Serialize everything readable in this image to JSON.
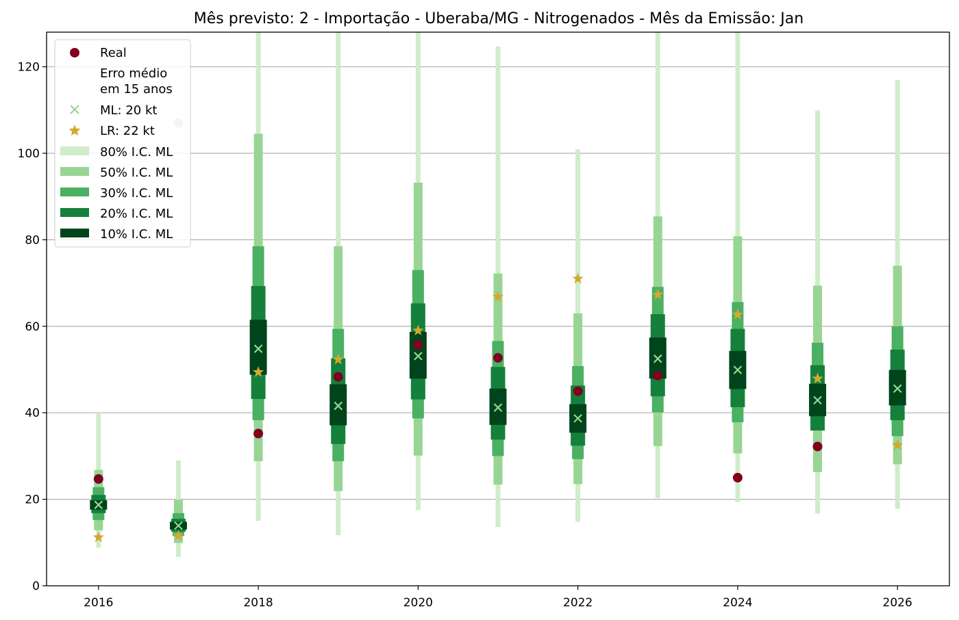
{
  "chart_data": {
    "type": "interval-forecast",
    "title": "Mês previsto: 2 - Importação - Uberaba/MG - Nitrogenados - Mês da Emissão: Jan",
    "xlabel": "",
    "ylabel": "",
    "xlim": [
      2015.35,
      2026.65
    ],
    "ylim": [
      0,
      128
    ],
    "x_ticks": [
      2016,
      2018,
      2020,
      2022,
      2024,
      2026
    ],
    "y_ticks": [
      0,
      20,
      40,
      60,
      80,
      100,
      120
    ],
    "grid": "horizontal",
    "legend_position": "top-left",
    "colors": {
      "ci80": "#d0ecca",
      "ci50": "#98d594",
      "ci30": "#4bb062",
      "ci20": "#15803b",
      "ci10": "#00441b",
      "real": "#800020",
      "real_faded": "#d8adb9",
      "ml_marker": "#98d594",
      "lr_marker": "#d4a830",
      "grid": "#b0b0b0"
    },
    "legend": {
      "real": "Real",
      "error_line1": "Erro médio",
      "error_line2": "em 15 anos",
      "ml": "ML: 20 kt",
      "lr": "LR: 22 kt",
      "ci80": "80% I.C. ML",
      "ci50": "50% I.C. ML",
      "ci30": "30% I.C. ML",
      "ci20": "20% I.C. ML",
      "ci10": "10% I.C. ML"
    },
    "series": [
      {
        "year": 2016,
        "ml": 18.7,
        "lr": 11.2,
        "real": 24.7,
        "real_faded": false,
        "ci80": [
          8.8,
          40.0
        ],
        "ci50": [
          12.8,
          26.8
        ],
        "ci30": [
          15.2,
          22.8
        ],
        "ci20": [
          16.8,
          21.0
        ],
        "ci10": [
          17.6,
          19.8
        ]
      },
      {
        "year": 2017,
        "ml": 13.9,
        "lr": 11.6,
        "real": 107.0,
        "real_faded": true,
        "ci80": [
          6.7,
          29.0
        ],
        "ci50": [
          9.9,
          19.9
        ],
        "ci30": [
          11.5,
          16.8
        ],
        "ci20": [
          12.5,
          15.5
        ],
        "ci10": [
          13.0,
          14.8
        ]
      },
      {
        "year": 2018,
        "ml": 54.8,
        "lr": 49.4,
        "real": 35.2,
        "real_faded": false,
        "ci80": [
          15.0,
          128.0
        ],
        "ci50": [
          28.8,
          104.5
        ],
        "ci30": [
          38.3,
          78.5
        ],
        "ci20": [
          43.2,
          69.3
        ],
        "ci10": [
          48.8,
          61.5
        ]
      },
      {
        "year": 2019,
        "ml": 41.6,
        "lr": 52.3,
        "real": 48.3,
        "real_faded": false,
        "ci80": [
          11.7,
          128.0
        ],
        "ci50": [
          21.9,
          78.5
        ],
        "ci30": [
          28.8,
          59.4
        ],
        "ci20": [
          32.8,
          52.6
        ],
        "ci10": [
          37.1,
          46.6
        ]
      },
      {
        "year": 2020,
        "ml": 53.1,
        "lr": 59.0,
        "real": 55.7,
        "real_faded": false,
        "ci80": [
          17.5,
          128.0
        ],
        "ci50": [
          30.1,
          93.2
        ],
        "ci30": [
          38.7,
          73.0
        ],
        "ci20": [
          43.1,
          65.3
        ],
        "ci10": [
          47.9,
          58.7
        ]
      },
      {
        "year": 2021,
        "ml": 41.2,
        "lr": 66.8,
        "real": 52.7,
        "real_faded": false,
        "ci80": [
          13.6,
          124.7
        ],
        "ci50": [
          23.4,
          72.2
        ],
        "ci30": [
          30.0,
          56.6
        ],
        "ci20": [
          33.8,
          50.6
        ],
        "ci10": [
          37.2,
          45.6
        ]
      },
      {
        "year": 2022,
        "ml": 38.7,
        "lr": 71.0,
        "real": 45.0,
        "real_faded": false,
        "ci80": [
          14.8,
          100.9
        ],
        "ci50": [
          23.5,
          63.0
        ],
        "ci30": [
          29.3,
          50.8
        ],
        "ci20": [
          32.4,
          46.3
        ],
        "ci10": [
          35.4,
          42.0
        ]
      },
      {
        "year": 2023,
        "ml": 52.5,
        "lr": 67.3,
        "real": 48.6,
        "real_faded": false,
        "ci80": [
          20.3,
          128.0
        ],
        "ci50": [
          32.3,
          85.4
        ],
        "ci30": [
          40.1,
          69.1
        ],
        "ci20": [
          43.8,
          62.8
        ],
        "ci10": [
          47.9,
          57.4
        ]
      },
      {
        "year": 2024,
        "ml": 49.9,
        "lr": 62.7,
        "real": 25.0,
        "real_faded": false,
        "ci80": [
          19.4,
          128.0
        ],
        "ci50": [
          30.6,
          80.8
        ],
        "ci30": [
          37.8,
          65.6
        ],
        "ci20": [
          41.3,
          59.4
        ],
        "ci10": [
          45.5,
          54.3
        ]
      },
      {
        "year": 2025,
        "ml": 42.9,
        "lr": 47.9,
        "real": 32.2,
        "real_faded": false,
        "ci80": [
          16.7,
          109.9
        ],
        "ci50": [
          26.3,
          69.4
        ],
        "ci30": [
          35.9,
          56.2
        ],
        "ci20": [
          35.9,
          51.0
        ],
        "ci10": [
          39.2,
          46.7
        ]
      },
      {
        "year": 2026,
        "ml": 45.6,
        "lr": 32.5,
        "real": null,
        "real_faded": false,
        "ci80": [
          17.8,
          116.9
        ],
        "ci50": [
          28.1,
          74.0
        ],
        "ci30": [
          34.6,
          60.0
        ],
        "ci20": [
          38.3,
          54.6
        ],
        "ci10": [
          41.7,
          49.9
        ]
      }
    ]
  }
}
